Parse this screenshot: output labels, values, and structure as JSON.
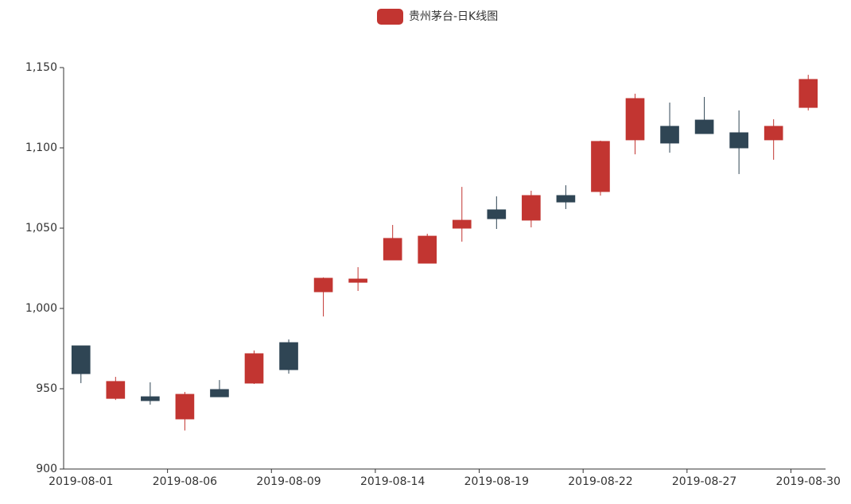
{
  "chart_data": {
    "type": "candlestick",
    "legend": "贵州茅台-日K线图",
    "legend_position": "top",
    "colors": {
      "up": "#c23531",
      "down": "#2f4554"
    },
    "categories": [
      "2019-08-01",
      null,
      null,
      "2019-08-06",
      null,
      null,
      "2019-08-09",
      null,
      null,
      "2019-08-14",
      null,
      null,
      "2019-08-19",
      null,
      null,
      "2019-08-22",
      null,
      null,
      "2019-08-27",
      null,
      null,
      "2019-08-30"
    ],
    "open": [
      976.7,
      944.0,
      945.0,
      931.2,
      949.5,
      953.5,
      978.7,
      1010.4,
      1016.3,
      1030.2,
      1028.2,
      1050.0,
      1061.4,
      1055.0,
      1070.3,
      1072.8,
      1105.0,
      1113.4,
      1117.3,
      1109.4,
      1105.0,
      1125.2
    ],
    "close": [
      959.4,
      954.5,
      942.6,
      946.5,
      945.0,
      971.8,
      961.9,
      1018.8,
      1018.3,
      1043.6,
      1045.0,
      1054.9,
      1055.9,
      1070.3,
      1066.3,
      1104.0,
      1130.7,
      1103.0,
      1108.9,
      1100.0,
      1113.4,
      1142.6
    ],
    "low": [
      953.5,
      943.0,
      940.1,
      924.0,
      945.0,
      953.0,
      959.4,
      995.0,
      1010.9,
      1030.2,
      1028.2,
      1041.6,
      1049.5,
      1050.5,
      1061.9,
      1070.3,
      1096.0,
      1097.0,
      1108.9,
      1083.7,
      1092.6,
      1123.3
    ],
    "high": [
      976.7,
      957.4,
      954.0,
      948.0,
      955.4,
      973.8,
      980.7,
      1019.3,
      1025.7,
      1052.0,
      1046.5,
      1075.7,
      1069.8,
      1073.3,
      1076.7,
      1104.5,
      1133.7,
      1128.2,
      1131.7,
      1123.3,
      1117.8,
      1145.5
    ],
    "ylim": [
      900,
      1150
    ],
    "yticks": [
      900,
      950,
      {
        "value": 1000,
        "label": "1,000"
      },
      {
        "value": 1050,
        "label": "1,050"
      },
      {
        "value": 1100,
        "label": "1,100"
      },
      {
        "value": 1150,
        "label": "1,150"
      }
    ],
    "grid": false
  }
}
